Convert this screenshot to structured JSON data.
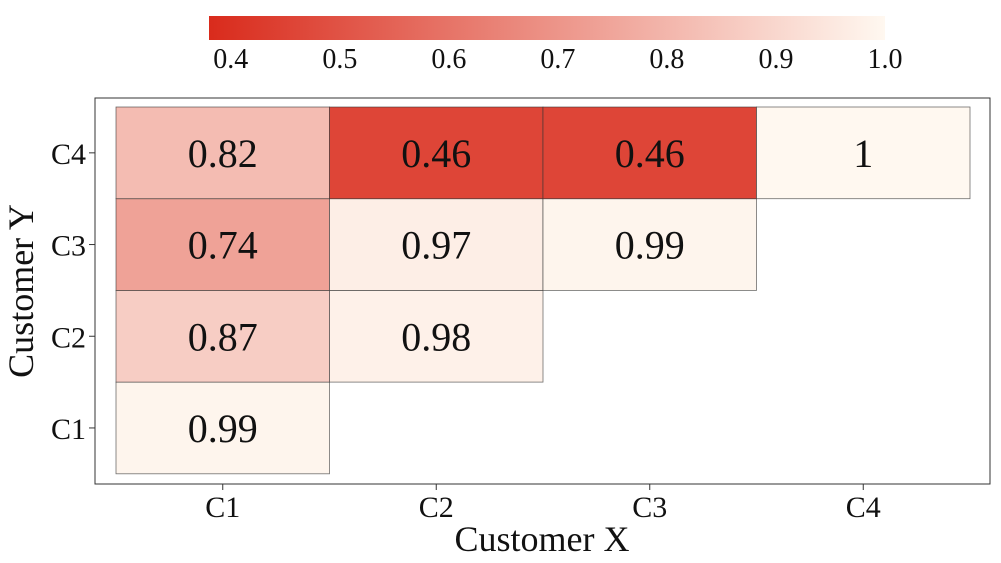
{
  "chart_data": {
    "type": "heatmap",
    "title": "",
    "xlabel": "Customer X",
    "ylabel": "Customer Y",
    "x_categories": [
      "C1",
      "C2",
      "C3",
      "C4"
    ],
    "y_categories": [
      "C1",
      "C2",
      "C3",
      "C4"
    ],
    "cells": [
      {
        "x": "C1",
        "y": "C1",
        "value": 0.99,
        "label": "0.99"
      },
      {
        "x": "C1",
        "y": "C2",
        "value": 0.87,
        "label": "0.87"
      },
      {
        "x": "C1",
        "y": "C3",
        "value": 0.74,
        "label": "0.74"
      },
      {
        "x": "C1",
        "y": "C4",
        "value": 0.82,
        "label": "0.82"
      },
      {
        "x": "C2",
        "y": "C2",
        "value": 0.98,
        "label": "0.98"
      },
      {
        "x": "C2",
        "y": "C3",
        "value": 0.97,
        "label": "0.97"
      },
      {
        "x": "C2",
        "y": "C4",
        "value": 0.46,
        "label": "0.46"
      },
      {
        "x": "C3",
        "y": "C3",
        "value": 0.99,
        "label": "0.99"
      },
      {
        "x": "C3",
        "y": "C4",
        "value": 0.46,
        "label": "0.46"
      },
      {
        "x": "C4",
        "y": "C4",
        "value": 1.0,
        "label": "1"
      }
    ],
    "colorbar": {
      "range": [
        0.38,
        1.0
      ],
      "ticks": [
        0.4,
        0.5,
        0.6,
        0.7,
        0.8,
        0.9,
        1.0
      ],
      "tick_labels": [
        "0.4",
        "0.5",
        "0.6",
        "0.7",
        "0.8",
        "0.9",
        "1.0"
      ],
      "low_color": "#d92b1c",
      "high_color": "#fff8f0",
      "placement": "top"
    }
  }
}
